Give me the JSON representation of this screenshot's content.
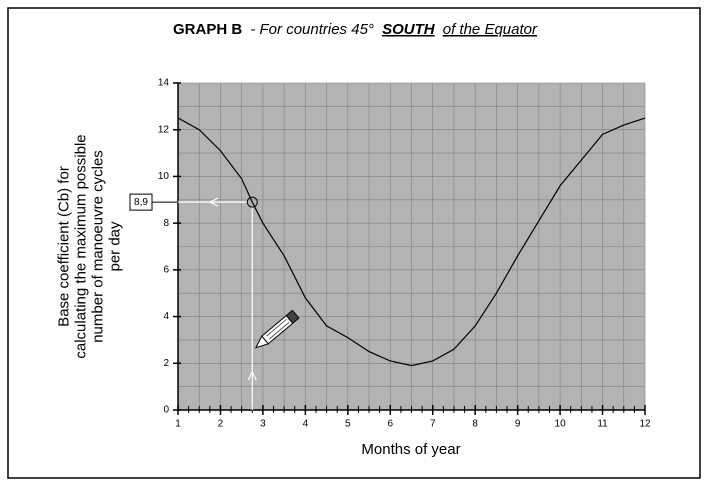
{
  "chart_data": {
    "type": "line",
    "title": [
      "GRAPH B",
      "- For countries 45°",
      "SOUTH",
      "of the Equator"
    ],
    "ylabel": [
      "Base coefficient (Cb) for",
      "calculating the maximum possible",
      "number of manoeuvre cycles",
      "per day"
    ],
    "xlabel": "Months of year",
    "series": [
      {
        "color": "#000000",
        "x": [
          1,
          1.5,
          2,
          2.5,
          2.75,
          3,
          3.5,
          4,
          4.5,
          5,
          5.5,
          6,
          6.5,
          7,
          7.5,
          8,
          8.5,
          9,
          9.5,
          10,
          10.5,
          11,
          11.5,
          12
        ],
        "values": [
          12.5,
          12.0,
          11.1,
          9.9,
          8.9,
          8.0,
          6.6,
          4.8,
          3.6,
          3.1,
          2.5,
          2.1,
          1.9,
          2.1,
          2.6,
          3.6,
          5.0,
          6.6,
          8.1,
          9.6,
          10.7,
          11.8,
          12.2,
          12.5
        ]
      }
    ],
    "annotation": {
      "label": "8,9",
      "x": 2.75,
      "y": 8.9
    },
    "xlim": [
      1,
      12
    ],
    "xticks": [
      1,
      2,
      3,
      4,
      5,
      6,
      7,
      8,
      9,
      10,
      11,
      12
    ],
    "ylim": [
      0,
      14
    ],
    "yticks": [
      0,
      2,
      4,
      6,
      8,
      10,
      12,
      14
    ],
    "grid": true,
    "background": "#b3b3b3"
  }
}
